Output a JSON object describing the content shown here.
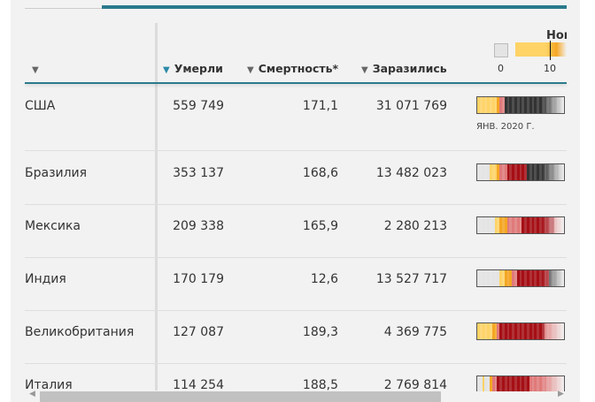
{
  "header": {
    "country_sort_icon": "triangle-down",
    "columns": [
      {
        "label": "Умерли",
        "active": true
      },
      {
        "label": "Смертность*",
        "active": false
      },
      {
        "label": "Заразились",
        "active": false
      }
    ],
    "legend": {
      "title": "Нов",
      "min_label": "0",
      "mid_label": "10"
    }
  },
  "colors": {
    "accent": "#2a7a8c",
    "zero": "#e4e4e4",
    "low": "#ffd366",
    "mid": "#f5a623",
    "pink": "#e07a7a",
    "red": "#a50f15",
    "black": "#333333"
  },
  "rows": [
    {
      "country": "США",
      "deaths": "559 749",
      "mortality": "171,1",
      "cases": "31 071 769",
      "strip_label": "ЯНВ. 2020 Г.",
      "strip": [
        [
          "low",
          8
        ],
        [
          "mid",
          1
        ],
        [
          "pink",
          2
        ],
        [
          "black",
          24
        ]
      ]
    },
    {
      "country": "Бразилия",
      "deaths": "353 137",
      "mortality": "168,6",
      "cases": "13 482 023",
      "strip": [
        [
          "zero",
          5
        ],
        [
          "low",
          3
        ],
        [
          "mid",
          1
        ],
        [
          "pink",
          3
        ],
        [
          "red",
          8
        ],
        [
          "black",
          15
        ]
      ]
    },
    {
      "country": "Мексика",
      "deaths": "209 338",
      "mortality": "165,9",
      "cases": "2 280 213",
      "strip": [
        [
          "zero",
          7
        ],
        [
          "low",
          2
        ],
        [
          "mid",
          3
        ],
        [
          "pink",
          6
        ],
        [
          "red",
          13
        ],
        [
          "pink",
          4
        ]
      ]
    },
    {
      "country": "Индия",
      "deaths": "170 179",
      "mortality": "12,6",
      "cases": "13 527 717",
      "strip": [
        [
          "zero",
          9
        ],
        [
          "low",
          2
        ],
        [
          "mid",
          3
        ],
        [
          "pink",
          2
        ],
        [
          "red",
          13
        ],
        [
          "black",
          6
        ]
      ]
    },
    {
      "country": "Великобритания",
      "deaths": "127 087",
      "mortality": "189,3",
      "cases": "4 369 775",
      "strip": [
        [
          "low",
          6
        ],
        [
          "mid",
          2
        ],
        [
          "pink",
          1
        ],
        [
          "red",
          18
        ],
        [
          "pink",
          8
        ]
      ]
    },
    {
      "country": "Италия",
      "deaths": "114 254",
      "mortality": "188,5",
      "cases": "2 769 814",
      "strip": [
        [
          "zero",
          2
        ],
        [
          "low",
          1
        ],
        [
          "zero",
          2
        ],
        [
          "mid",
          1
        ],
        [
          "pink",
          2
        ],
        [
          "red",
          13
        ],
        [
          "pink",
          14
        ]
      ]
    }
  ]
}
